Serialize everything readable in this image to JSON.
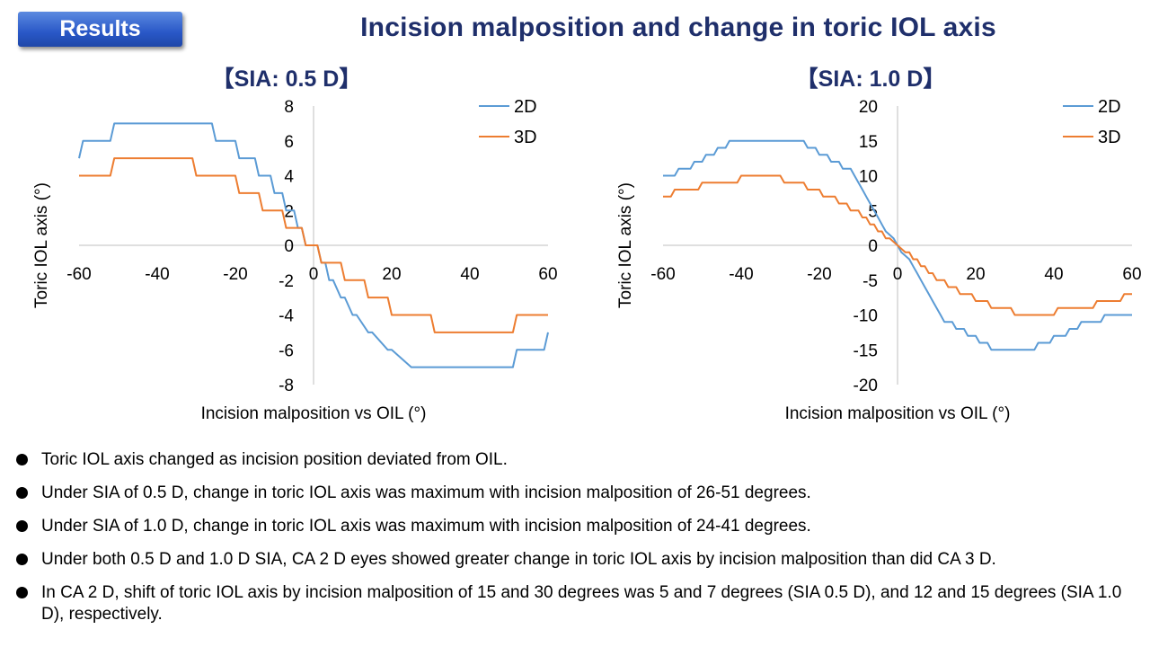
{
  "header": {
    "badge": "Results",
    "title": "Incision malposition and change in toric IOL axis"
  },
  "chart_data": [
    {
      "type": "line",
      "title": "【SIA: 0.5 D】",
      "xlabel": "Incision malposition vs OIL (°)",
      "ylabel": "Toric IOL axis (°)",
      "xlim": [
        -60,
        60
      ],
      "ylim": [
        -8,
        8
      ],
      "xticks": [
        -60,
        -40,
        -20,
        0,
        20,
        40,
        60
      ],
      "xtick_labels": [
        "-60",
        "-40",
        "-20",
        "0",
        "20",
        "40",
        "60"
      ],
      "yticks": [
        8,
        6,
        4,
        2,
        0,
        -2,
        -4,
        -6,
        -8
      ],
      "ytick_labels": [
        "8",
        "6",
        "4",
        "2",
        "0",
        "-2",
        "-4",
        "-6",
        "-8"
      ],
      "grid": false,
      "legend_position": "top-right",
      "series": [
        {
          "name": "2D",
          "color": "#5b9bd5",
          "x": [
            -60,
            -59,
            -52,
            -51,
            -26,
            -25,
            -20,
            -19,
            -15,
            -14,
            -11,
            -10,
            -8,
            -7,
            -5,
            -4,
            -3,
            -2,
            -1,
            1,
            2,
            3,
            4,
            5,
            7,
            8,
            10,
            11,
            14,
            15,
            19,
            20,
            25,
            26,
            51,
            52,
            59,
            60
          ],
          "y": [
            5,
            6,
            6,
            7,
            7,
            6,
            6,
            5,
            5,
            4,
            4,
            3,
            3,
            2,
            2,
            1,
            1,
            0,
            0,
            0,
            -1,
            -1,
            -2,
            -2,
            -3,
            -3,
            -4,
            -4,
            -5,
            -5,
            -6,
            -6,
            -7,
            -7,
            -7,
            -6,
            -6,
            -5
          ]
        },
        {
          "name": "3D",
          "color": "#ed7d31",
          "x": [
            -60,
            -52,
            -51,
            -31,
            -30,
            -20,
            -19,
            -14,
            -13,
            -8,
            -7,
            -3,
            -2,
            -1,
            1,
            2,
            3,
            7,
            8,
            13,
            14,
            19,
            20,
            30,
            31,
            51,
            52,
            60
          ],
          "y": [
            4,
            4,
            5,
            5,
            4,
            4,
            3,
            3,
            2,
            2,
            1,
            1,
            0,
            0,
            0,
            -1,
            -1,
            -1,
            -2,
            -2,
            -3,
            -3,
            -4,
            -4,
            -5,
            -5,
            -4,
            -4
          ]
        }
      ]
    },
    {
      "type": "line",
      "title": "【SIA: 1.0 D】",
      "xlabel": "Incision malposition vs OIL (°)",
      "ylabel": "Toric IOL axis (°)",
      "xlim": [
        -60,
        60
      ],
      "ylim": [
        -20,
        20
      ],
      "xticks": [
        -60,
        -40,
        -20,
        0,
        20,
        40,
        60
      ],
      "xtick_labels": [
        "-60",
        "-40",
        "-20",
        "0",
        "20",
        "40",
        "60"
      ],
      "yticks": [
        20,
        15,
        10,
        5,
        0,
        -5,
        -10,
        -15,
        -20
      ],
      "ytick_labels": [
        "20",
        "15",
        "10",
        "5",
        "0",
        "-5",
        "-10",
        "-15",
        "-20"
      ],
      "grid": false,
      "legend_position": "top-right",
      "series": [
        {
          "name": "2D",
          "color": "#5b9bd5",
          "x": [
            -60,
            -57,
            -56,
            -53,
            -52,
            -50,
            -49,
            -47,
            -46,
            -44,
            -43,
            -40,
            -39,
            -36,
            -35,
            -24,
            -23,
            -21,
            -20,
            -18,
            -17,
            -15,
            -14,
            -12,
            -11,
            -10,
            -9,
            -8,
            -7,
            -6,
            -5,
            -4,
            -3,
            -2,
            -1,
            0,
            1,
            2,
            3,
            4,
            5,
            6,
            7,
            8,
            9,
            10,
            11,
            12,
            14,
            15,
            17,
            18,
            20,
            21,
            23,
            24,
            35,
            36,
            39,
            40,
            43,
            44,
            46,
            47,
            49,
            50,
            52,
            53,
            56,
            57,
            60
          ],
          "y": [
            10,
            10,
            11,
            11,
            12,
            12,
            13,
            13,
            14,
            14,
            15,
            15,
            15,
            15,
            15,
            15,
            14,
            14,
            13,
            13,
            12,
            12,
            11,
            11,
            10,
            9,
            8,
            7,
            6,
            5,
            4,
            3,
            2,
            1.5,
            1,
            0,
            -1,
            -1.5,
            -2,
            -3,
            -4,
            -5,
            -6,
            -7,
            -8,
            -9,
            -10,
            -11,
            -11,
            -12,
            -12,
            -13,
            -13,
            -14,
            -14,
            -15,
            -15,
            -14,
            -14,
            -13,
            -13,
            -12,
            -12,
            -11,
            -11,
            -11,
            -11,
            -10,
            -10,
            -10,
            -10
          ]
        },
        {
          "name": "3D",
          "color": "#ed7d31",
          "x": [
            -60,
            -58,
            -57,
            -51,
            -50,
            -41,
            -40,
            -30,
            -29,
            -24,
            -23,
            -20,
            -19,
            -16,
            -15,
            -13,
            -12,
            -10,
            -9,
            -8,
            -7,
            -6,
            -5,
            -4,
            -3,
            -2,
            -1,
            0,
            1,
            2,
            3,
            4,
            5,
            6,
            7,
            8,
            9,
            10,
            12,
            13,
            15,
            16,
            19,
            20,
            23,
            24,
            29,
            30,
            40,
            41,
            50,
            51,
            57,
            58,
            60
          ],
          "y": [
            7,
            7,
            8,
            8,
            9,
            9,
            10,
            10,
            9,
            9,
            8,
            8,
            7,
            7,
            6,
            6,
            5,
            5,
            4,
            4,
            3,
            3,
            2,
            2,
            1,
            1,
            0.5,
            0,
            -0.5,
            -1,
            -1,
            -2,
            -2,
            -3,
            -3,
            -4,
            -4,
            -5,
            -5,
            -6,
            -6,
            -7,
            -7,
            -8,
            -8,
            -9,
            -9,
            -10,
            -10,
            -9,
            -9,
            -8,
            -8,
            -7,
            -7
          ]
        }
      ]
    }
  ],
  "bullets": [
    "Toric IOL axis changed as incision position deviated from OIL.",
    "Under SIA of 0.5 D, change in toric IOL axis was maximum with incision malposition of 26-51 degrees.",
    "Under SIA of 1.0 D, change in toric IOL axis was maximum with incision malposition of 24-41 degrees.",
    "Under both 0.5 D  and 1.0 D SIA, CA 2 D eyes showed greater change in toric IOL axis by incision malposition than did CA 3 D.",
    "In CA 2 D, shift of toric IOL axis by incision malposition of 15 and 30 degrees was 5 and 7 degrees (SIA 0.5 D), and 12 and 15 degrees (SIA 1.0 D), respectively."
  ]
}
